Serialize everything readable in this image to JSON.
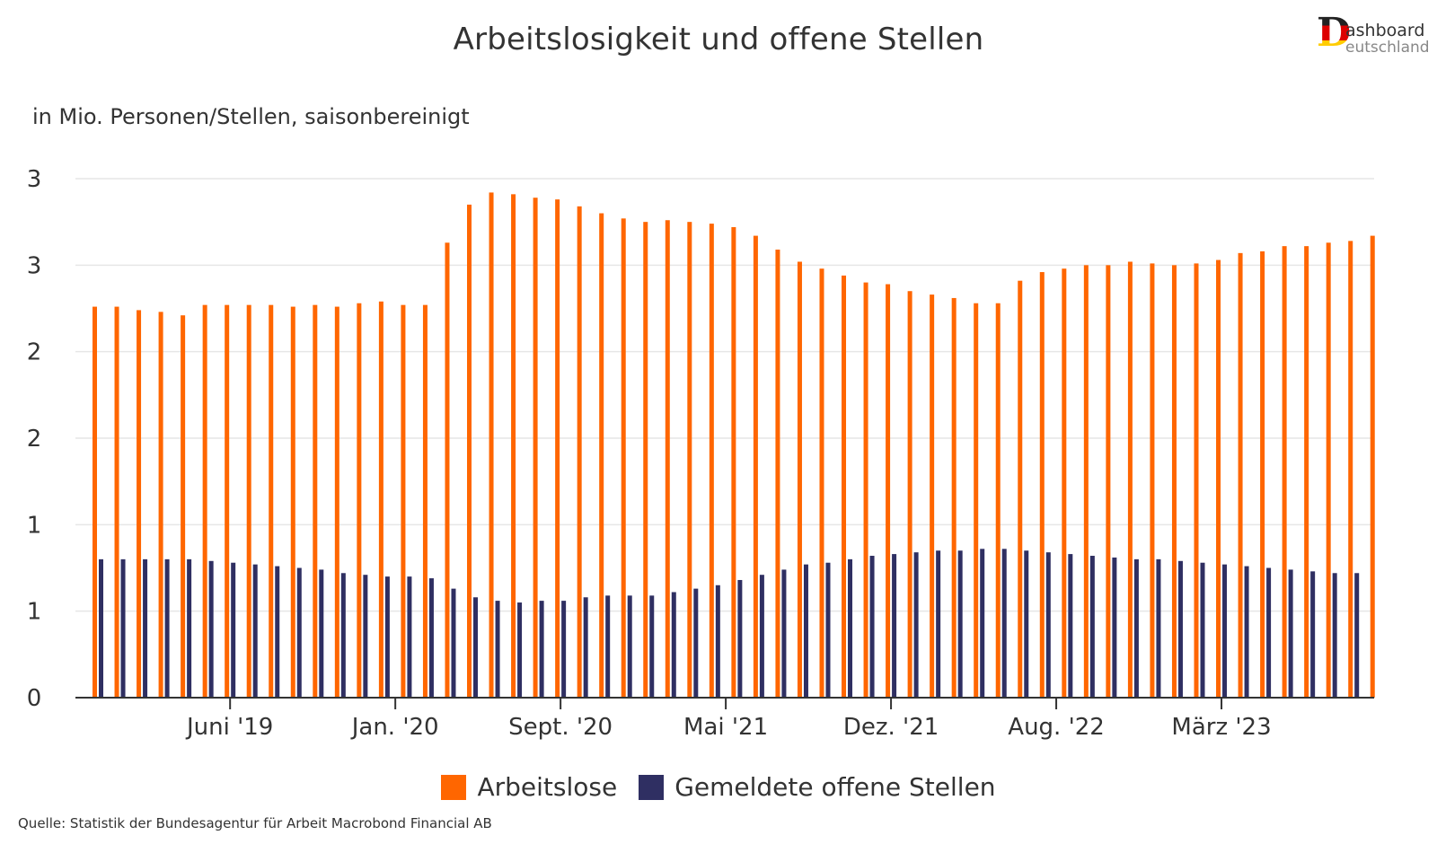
{
  "header": {
    "title": "Arbeitslosigkeit und offene Stellen",
    "subtitle": "in Mio. Personen/Stellen, saisonbereinigt",
    "source": "Quelle: Statistik der Bundesagentur für Arbeit Macrobond Financial AB"
  },
  "logo": {
    "letter": "D",
    "line1": "ashboard",
    "line2": "eutschland"
  },
  "colors": {
    "arbeitslose": "#ff6600",
    "offene_stellen": "#2f2f62",
    "grid": "#e6e6e6",
    "axis": "#333333"
  },
  "chart_data": {
    "type": "bar",
    "title": "Arbeitslosigkeit und offene Stellen",
    "ylabel": "in Mio. Personen/Stellen, saisonbereinigt",
    "xlabel": "",
    "ylim": [
      0,
      3
    ],
    "y_ticks": [
      0,
      0.5,
      1.0,
      1.5,
      2.0,
      2.5,
      3.0
    ],
    "y_tick_labels": [
      "0",
      "1",
      "1",
      "2",
      "2",
      "3",
      "3"
    ],
    "x_tick_labels": [
      {
        "label": "Juni '19",
        "index": 6
      },
      {
        "label": "Jan. '20",
        "index": 13.5
      },
      {
        "label": "Sept. '20",
        "index": 21
      },
      {
        "label": "Mai '21",
        "index": 28.5
      },
      {
        "label": "Dez. '21",
        "index": 36
      },
      {
        "label": "Aug. '22",
        "index": 43.5
      },
      {
        "label": "März '23",
        "index": 51
      }
    ],
    "legend": [
      "Arbeitslose",
      "Gemeldete offene Stellen"
    ],
    "series": [
      {
        "name": "Arbeitslose",
        "values": [
          2.26,
          2.26,
          2.24,
          2.23,
          2.21,
          2.27,
          2.27,
          2.27,
          2.27,
          2.26,
          2.27,
          2.26,
          2.28,
          2.29,
          2.27,
          2.27,
          2.63,
          2.85,
          2.92,
          2.91,
          2.89,
          2.88,
          2.84,
          2.8,
          2.77,
          2.75,
          2.76,
          2.75,
          2.74,
          2.72,
          2.67,
          2.59,
          2.52,
          2.48,
          2.44,
          2.4,
          2.39,
          2.35,
          2.33,
          2.31,
          2.28,
          2.28,
          2.41,
          2.46,
          2.48,
          2.5,
          2.5,
          2.52,
          2.51,
          2.5,
          2.51,
          2.53,
          2.57,
          2.58,
          2.61,
          2.61,
          2.63,
          2.64,
          2.67
        ]
      },
      {
        "name": "Gemeldete offene Stellen",
        "values": [
          0.8,
          0.8,
          0.8,
          0.8,
          0.8,
          0.79,
          0.78,
          0.77,
          0.76,
          0.75,
          0.74,
          0.72,
          0.71,
          0.7,
          0.7,
          0.69,
          0.63,
          0.58,
          0.56,
          0.55,
          0.56,
          0.56,
          0.58,
          0.59,
          0.59,
          0.59,
          0.61,
          0.63,
          0.65,
          0.68,
          0.71,
          0.74,
          0.77,
          0.78,
          0.8,
          0.82,
          0.83,
          0.84,
          0.85,
          0.85,
          0.86,
          0.86,
          0.85,
          0.84,
          0.83,
          0.82,
          0.81,
          0.8,
          0.8,
          0.79,
          0.78,
          0.77,
          0.76,
          0.75,
          0.74,
          0.73,
          0.72,
          0.72
        ]
      }
    ]
  }
}
